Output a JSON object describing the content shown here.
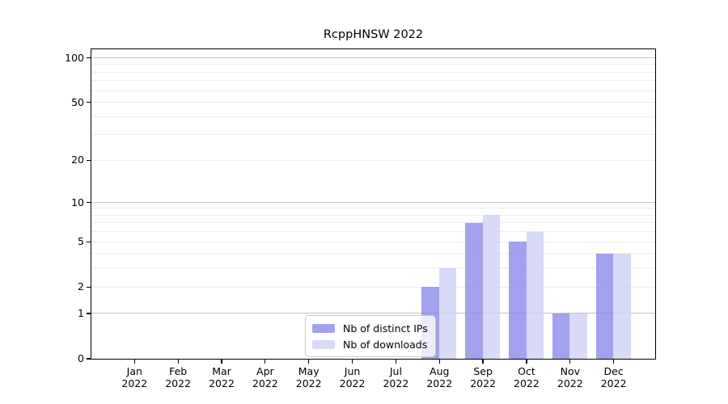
{
  "title": "RcppHNSW 2022",
  "colors": {
    "ips_bar": "#8a8aeb",
    "downloads_bar": "#cfcff6",
    "grid_major": "#c3c3c3",
    "grid_minor": "#ececec",
    "axis": "#000000",
    "legend_border": "#cccccc"
  },
  "chart_data": {
    "type": "bar",
    "title": "RcppHNSW 2022",
    "categories": [
      "Jan",
      "Feb",
      "Mar",
      "Apr",
      "May",
      "Jun",
      "Jul",
      "Aug",
      "Sep",
      "Oct",
      "Nov",
      "Dec"
    ],
    "year_label": "2022",
    "series": [
      {
        "name": "Nb of distinct IPs",
        "values": [
          0,
          0,
          0,
          0,
          0,
          0,
          0,
          2,
          7,
          5,
          1,
          4
        ]
      },
      {
        "name": "Nb of downloads",
        "values": [
          0,
          0,
          0,
          0,
          0,
          0,
          0,
          3,
          8,
          6,
          1,
          4
        ]
      }
    ],
    "xlabel": "",
    "ylabel": "",
    "yscale": "log1p",
    "ylim": [
      0,
      100
    ],
    "yticks": [
      0,
      1,
      2,
      5,
      10,
      20,
      50,
      100
    ],
    "major_gridlines": [
      1,
      10,
      100
    ],
    "minor_gridlines": [
      2,
      3,
      4,
      5,
      6,
      7,
      8,
      9,
      20,
      30,
      40,
      50,
      60,
      70,
      80,
      90
    ],
    "grid": true,
    "legend_position": "bottom-center"
  }
}
